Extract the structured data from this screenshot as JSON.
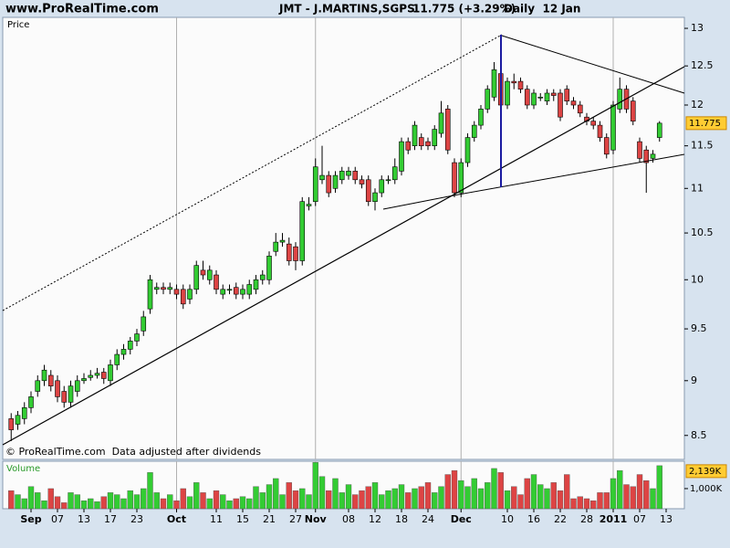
{
  "header": {
    "site": "www.ProRealTime.com",
    "symbol": "JMT - J.MARTINS,SGPS",
    "change": "11.775 (+3.29%)",
    "period": "Daily  12 Jan"
  },
  "chart_data": [
    {
      "type": "candlestick",
      "title": "Price",
      "note": "© ProRealTime.com  Data adjusted after dividends",
      "categories": [
        null,
        null,
        null,
        "Sep",
        null,
        null,
        null,
        "07",
        null,
        null,
        null,
        "13",
        null,
        null,
        null,
        "17",
        null,
        null,
        null,
        "23",
        null,
        null,
        null,
        null,
        null,
        "Oct",
        null,
        null,
        null,
        null,
        null,
        "11",
        null,
        null,
        null,
        "15",
        null,
        null,
        null,
        "21",
        null,
        null,
        null,
        "27",
        null,
        null,
        "Nov",
        null,
        null,
        null,
        null,
        "08",
        null,
        null,
        null,
        "12",
        null,
        null,
        null,
        "18",
        null,
        null,
        null,
        "24",
        null,
        null,
        null,
        null,
        "Dec",
        null,
        null,
        null,
        null,
        null,
        null,
        "10",
        null,
        null,
        null,
        "16",
        null,
        null,
        null,
        "22",
        null,
        null,
        null,
        "28",
        null,
        null,
        null,
        "2011",
        null,
        null,
        null,
        "07",
        null,
        null,
        null,
        "13"
      ],
      "open": [
        8.65,
        8.6,
        8.65,
        8.75,
        8.9,
        9.0,
        9.05,
        9.0,
        8.9,
        8.8,
        8.9,
        9.0,
        9.03,
        9.05,
        9.08,
        9.0,
        9.15,
        9.25,
        9.3,
        9.38,
        9.48,
        9.7,
        9.9,
        9.92,
        9.9,
        9.9,
        9.9,
        9.8,
        9.9,
        10.1,
        10.0,
        10.05,
        9.85,
        9.9,
        9.92,
        9.85,
        9.85,
        9.9,
        10.0,
        10.0,
        10.3,
        10.4,
        10.38,
        10.35,
        10.2,
        10.8,
        10.85,
        11.1,
        11.15,
        11.0,
        11.1,
        11.15,
        11.2,
        11.1,
        11.1,
        10.85,
        10.95,
        11.1,
        11.1,
        11.2,
        11.55,
        11.5,
        11.6,
        11.55,
        11.5,
        11.65,
        11.95,
        11.3,
        10.95,
        11.3,
        11.6,
        11.75,
        11.95,
        12.1,
        12.4,
        12.0,
        12.3,
        12.3,
        12.2,
        12.0,
        12.1,
        12.05,
        12.15,
        12.15,
        12.2,
        12.05,
        12.0,
        11.85,
        11.8,
        11.75,
        11.6,
        11.45,
        11.95,
        12.2,
        12.05,
        11.55,
        11.45,
        11.35,
        11.6,
        null
      ],
      "high": [
        8.7,
        8.72,
        8.8,
        8.9,
        9.05,
        9.15,
        9.1,
        9.05,
        8.95,
        9.0,
        9.05,
        9.07,
        9.1,
        9.12,
        9.12,
        9.2,
        9.3,
        9.35,
        9.42,
        9.5,
        9.68,
        10.05,
        9.97,
        9.97,
        9.97,
        9.95,
        9.95,
        9.95,
        10.2,
        10.2,
        10.15,
        10.1,
        9.95,
        9.95,
        9.97,
        9.95,
        10.0,
        10.05,
        10.1,
        10.3,
        10.5,
        10.5,
        10.45,
        10.4,
        10.9,
        10.9,
        11.35,
        11.5,
        11.2,
        11.2,
        11.25,
        11.25,
        11.25,
        11.15,
        11.15,
        11.0,
        11.15,
        11.15,
        11.35,
        11.6,
        11.6,
        11.8,
        11.65,
        11.6,
        11.75,
        12.05,
        12.0,
        11.35,
        11.35,
        11.65,
        11.8,
        12.0,
        12.25,
        12.55,
        12.45,
        12.35,
        12.4,
        12.35,
        12.25,
        12.2,
        12.15,
        12.2,
        12.2,
        12.2,
        12.25,
        12.1,
        12.05,
        11.9,
        11.85,
        11.8,
        11.65,
        12.05,
        12.35,
        12.25,
        12.1,
        11.6,
        11.5,
        11.45,
        11.8,
        null
      ],
      "low": [
        8.45,
        8.55,
        8.6,
        8.7,
        8.85,
        8.95,
        8.9,
        8.8,
        8.75,
        8.75,
        8.85,
        8.97,
        9.0,
        9.02,
        8.97,
        8.95,
        9.1,
        9.2,
        9.25,
        9.33,
        9.43,
        9.65,
        9.85,
        9.85,
        9.85,
        9.8,
        9.7,
        9.75,
        9.85,
        10.0,
        9.95,
        9.85,
        9.8,
        9.85,
        9.8,
        9.8,
        9.8,
        9.85,
        9.95,
        9.95,
        10.25,
        10.35,
        10.15,
        10.1,
        10.15,
        10.75,
        10.8,
        11.05,
        10.9,
        10.95,
        11.05,
        11.1,
        11.05,
        11.0,
        10.8,
        10.75,
        10.9,
        11.05,
        11.05,
        11.15,
        11.4,
        11.45,
        11.45,
        11.45,
        11.45,
        11.6,
        11.4,
        10.9,
        10.9,
        11.25,
        11.55,
        11.7,
        11.9,
        12.05,
        11.95,
        11.95,
        12.2,
        12.15,
        11.95,
        11.95,
        12.05,
        12.0,
        12.05,
        11.8,
        12.0,
        11.95,
        11.85,
        11.75,
        11.7,
        11.55,
        11.35,
        11.4,
        11.9,
        11.9,
        11.75,
        11.3,
        10.95,
        11.3,
        11.55,
        null
      ],
      "close": [
        8.55,
        8.68,
        8.75,
        8.85,
        9.0,
        9.1,
        8.95,
        8.85,
        8.8,
        8.95,
        9.0,
        9.02,
        9.05,
        9.07,
        9.02,
        9.15,
        9.25,
        9.3,
        9.38,
        9.45,
        9.62,
        10.0,
        9.92,
        9.9,
        9.92,
        9.85,
        9.75,
        9.9,
        10.15,
        10.05,
        10.1,
        9.9,
        9.9,
        9.9,
        9.85,
        9.9,
        9.95,
        10.0,
        10.05,
        10.25,
        10.4,
        10.42,
        10.2,
        10.2,
        10.85,
        10.82,
        11.25,
        11.15,
        10.95,
        11.15,
        11.2,
        11.2,
        11.1,
        11.05,
        10.85,
        10.95,
        11.1,
        11.1,
        11.25,
        11.55,
        11.45,
        11.75,
        11.5,
        11.5,
        11.7,
        11.9,
        11.45,
        10.95,
        11.3,
        11.6,
        11.75,
        11.95,
        12.2,
        12.45,
        12.0,
        12.3,
        12.28,
        12.2,
        12.0,
        12.15,
        12.1,
        12.15,
        12.12,
        11.85,
        12.05,
        12.0,
        11.9,
        11.8,
        11.75,
        11.6,
        11.4,
        12.0,
        12.2,
        11.95,
        11.8,
        11.35,
        11.3,
        11.4,
        11.775,
        null
      ],
      "up_color": "#33cc33",
      "down_color": "#dd4444",
      "ylim": [
        8.29,
        13.15
      ],
      "yticks": [
        8.5,
        9,
        9.5,
        10,
        10.5,
        11,
        11.5,
        12,
        12.5,
        13
      ],
      "log": true,
      "last_label": {
        "value": 11.775,
        "label": "11.775"
      },
      "month_starts": [
        25,
        46,
        68,
        91
      ]
    },
    {
      "type": "bar",
      "title": "Volume",
      "values": [
        900,
        700,
        500,
        1100,
        800,
        400,
        1000,
        600,
        300,
        800,
        700,
        400,
        500,
        350,
        600,
        800,
        700,
        500,
        900,
        700,
        1000,
        1800,
        800,
        500,
        700,
        400,
        1000,
        600,
        1300,
        800,
        500,
        900,
        700,
        400,
        500,
        600,
        500,
        1100,
        800,
        1200,
        1500,
        700,
        1300,
        900,
        1000,
        700,
        2300,
        1600,
        900,
        1500,
        800,
        1200,
        700,
        900,
        1100,
        1300,
        700,
        900,
        1000,
        1200,
        800,
        1000,
        1100,
        1300,
        800,
        1100,
        1700,
        1900,
        1400,
        1100,
        1500,
        1000,
        1300,
        2000,
        1800,
        900,
        1100,
        700,
        1500,
        1700,
        1200,
        1000,
        1300,
        900,
        1700,
        500,
        600,
        500,
        400,
        800,
        800,
        1500,
        1900,
        1200,
        1100,
        1700,
        1400,
        1000,
        2139,
        null
      ],
      "ylim": [
        0,
        2360
      ],
      "yticks": [
        {
          "value": 1000,
          "label": "1,000K"
        }
      ],
      "last_label": {
        "value": 2139,
        "label": "2,139K"
      }
    }
  ]
}
